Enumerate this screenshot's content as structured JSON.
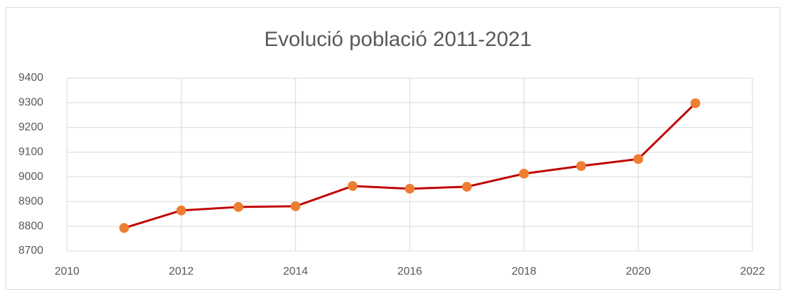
{
  "chart_data": {
    "type": "line",
    "title": "Evolució població 2011-2021",
    "x": [
      2011,
      2012,
      2013,
      2014,
      2015,
      2016,
      2017,
      2018,
      2019,
      2020,
      2021
    ],
    "values": [
      8793,
      8864,
      8878,
      8881,
      8963,
      8952,
      8960,
      9013,
      9044,
      9072,
      9298
    ],
    "color": "#c00000",
    "marker_color": "#ed7d31",
    "xlim": [
      2010,
      2022
    ],
    "xticks": [
      2010,
      2012,
      2014,
      2016,
      2018,
      2020,
      2022
    ],
    "ylim": [
      8700,
      9400
    ],
    "yticks": [
      8700,
      8800,
      8900,
      9000,
      9100,
      9200,
      9300,
      9400
    ],
    "grid": true
  }
}
